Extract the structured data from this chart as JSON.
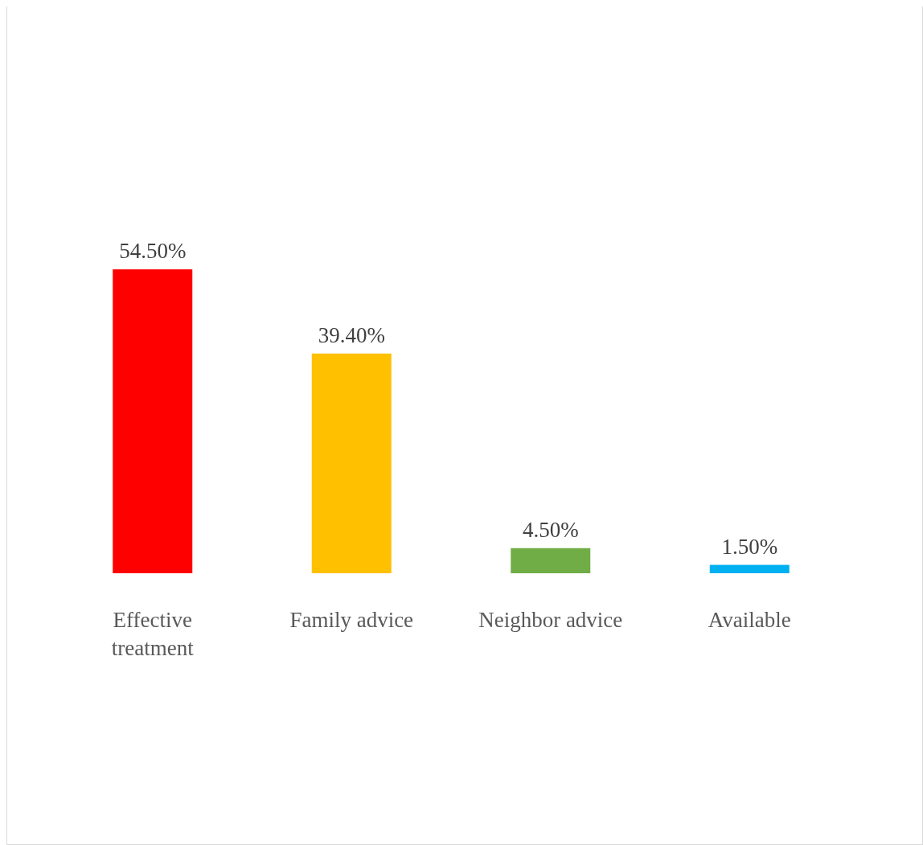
{
  "chart_data": {
    "type": "bar",
    "categories": [
      "Effective treatment",
      "Family advice",
      "Neighbor advice",
      "Available"
    ],
    "values": [
      54.5,
      39.4,
      4.5,
      1.5
    ],
    "colors": [
      "#ff0000",
      "#ffc000",
      "#70ad47",
      "#00b0f0"
    ],
    "value_labels": [
      "54.50%",
      "39.40%",
      "4.50%",
      "1.50%"
    ]
  }
}
